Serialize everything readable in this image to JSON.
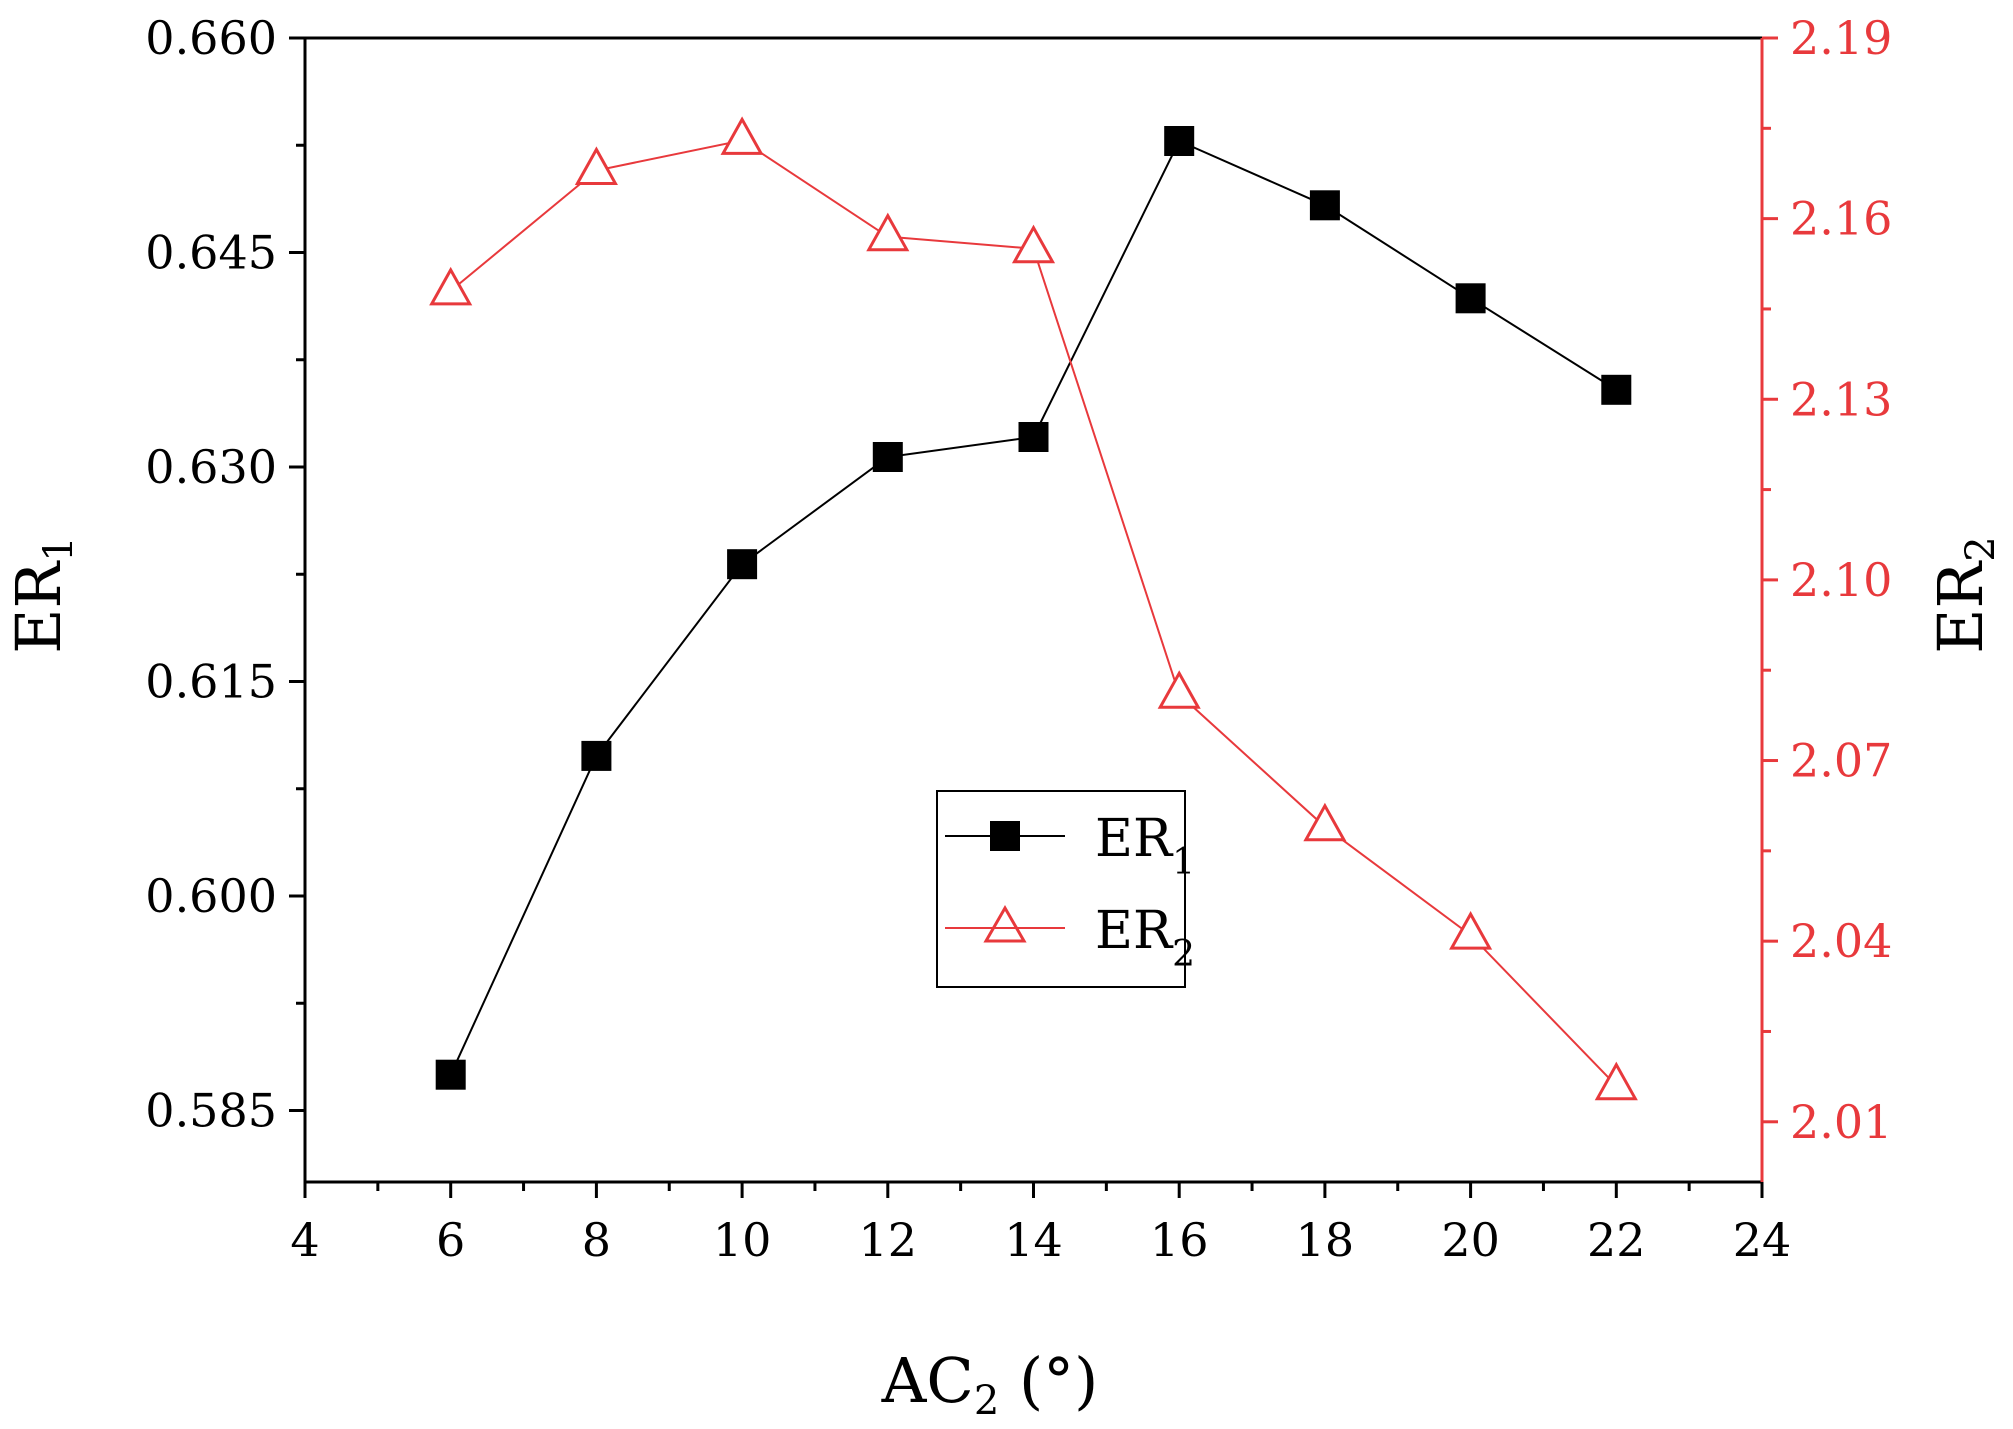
{
  "chart_data": {
    "type": "line",
    "title": "",
    "x": [
      6,
      8,
      10,
      12,
      14,
      16,
      18,
      20,
      22
    ],
    "xlim": [
      4,
      24
    ],
    "x_ticks": [
      "4",
      "6",
      "8",
      "10",
      "12",
      "14",
      "16",
      "18",
      "20",
      "22",
      "24"
    ],
    "xlabel": {
      "main": "AC",
      "sub": "2",
      "suffix": " (°)"
    },
    "y_left": {
      "ylim": [
        0.58,
        0.66
      ],
      "ticks": [
        "0.585",
        "0.600",
        "0.615",
        "0.630",
        "0.645",
        "0.660"
      ],
      "label": {
        "main": "ER",
        "sub": "1"
      },
      "color": "#000000"
    },
    "y_right": {
      "ylim": [
        2.0,
        2.19
      ],
      "ticks": [
        "2.01",
        "2.04",
        "2.07",
        "2.10",
        "2.13",
        "2.16",
        "2.19"
      ],
      "label": {
        "main": "ER",
        "sub": "2"
      },
      "color": "#e8393c"
    },
    "series": [
      {
        "name": "ER",
        "name_sub": "1",
        "axis": "left",
        "marker": "square",
        "color": "#000000",
        "values": [
          0.5875,
          0.6098,
          0.6232,
          0.6307,
          0.6321,
          0.6528,
          0.6483,
          0.6418,
          0.6354
        ]
      },
      {
        "name": "ER",
        "name_sub": "2",
        "axis": "right",
        "marker": "triangle-open",
        "color": "#e8393c",
        "values": [
          2.148,
          2.168,
          2.173,
          2.157,
          2.155,
          2.081,
          2.059,
          2.041,
          2.016
        ]
      }
    ],
    "legend": "center",
    "grid": false
  }
}
